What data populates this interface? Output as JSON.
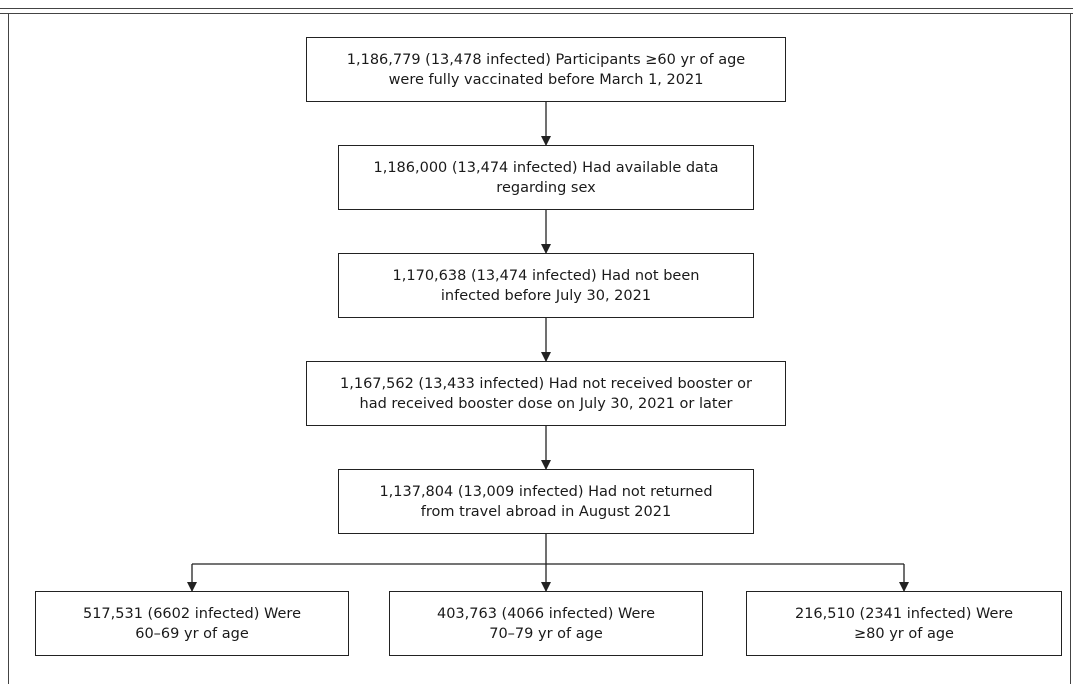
{
  "flow_boxes": [
    {
      "lines": [
        "1,186,779 (13,478 infected) Participants ≥60 yr of age",
        "were fully vaccinated before March 1, 2021"
      ]
    },
    {
      "lines": [
        "1,186,000 (13,474 infected) Had available data",
        "regarding sex"
      ]
    },
    {
      "lines": [
        "1,170,638 (13,474 infected) Had not been",
        "infected before July 30, 2021"
      ]
    },
    {
      "lines": [
        "1,167,562 (13,433 infected) Had not received booster or",
        "had received booster dose on  July 30, 2021 or later"
      ]
    },
    {
      "lines": [
        "1,137,804 (13,009 infected) Had not returned",
        "from travel abroad in August 2021"
      ]
    }
  ],
  "age_groups": [
    {
      "lines": [
        "517,531 (6602 infected) Were",
        "60–69 yr of age"
      ]
    },
    {
      "lines": [
        "403,763 (4066 infected) Were",
        "70–79 yr of age"
      ]
    },
    {
      "lines": [
        "216,510 (2341 infected) Were",
        "≥80 yr of age"
      ]
    }
  ]
}
